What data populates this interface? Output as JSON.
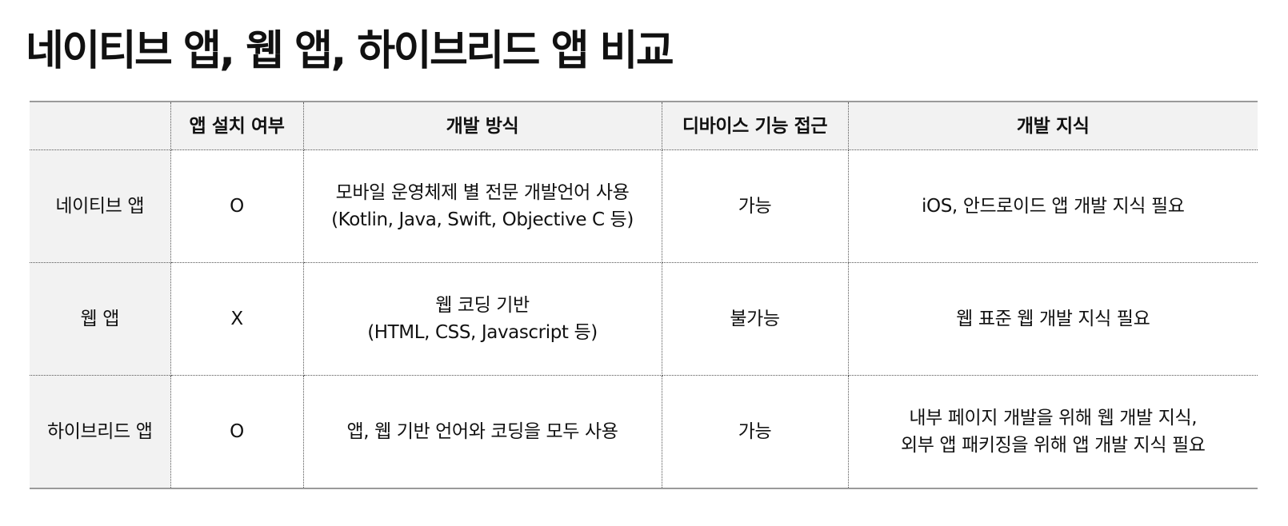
{
  "title": "네이티브 앱, 웹 앱, 하이브리드 앱 비교",
  "table": {
    "headers": [
      "",
      "앱 설치 여부",
      "개발 방식",
      "디바이스 기능 접근",
      "개발 지식"
    ],
    "rows": [
      {
        "name": "네이티브 앱",
        "install": "O",
        "method": [
          "모바일 운영체제 별 전문 개발언어 사용",
          "(Kotlin, Java, Swift, Objective C 등)"
        ],
        "device_access": "가능",
        "knowledge": [
          "iOS, 안드로이드 앱 개발 지식 필요"
        ]
      },
      {
        "name": "웹 앱",
        "install": "X",
        "method": [
          "웹 코딩 기반",
          "(HTML, CSS, Javascript 등)"
        ],
        "device_access": "불가능",
        "knowledge": [
          "웹 표준 웹 개발 지식 필요"
        ]
      },
      {
        "name": "하이브리드 앱",
        "install": "O",
        "method": [
          "앱, 웹 기반 언어와 코딩을 모두 사용"
        ],
        "device_access": "가능",
        "knowledge": [
          "내부 페이지 개발을 위해 웹 개발 지식,",
          "외부 앱 패키징을 위해 앱 개발 지식 필요"
        ]
      }
    ]
  }
}
